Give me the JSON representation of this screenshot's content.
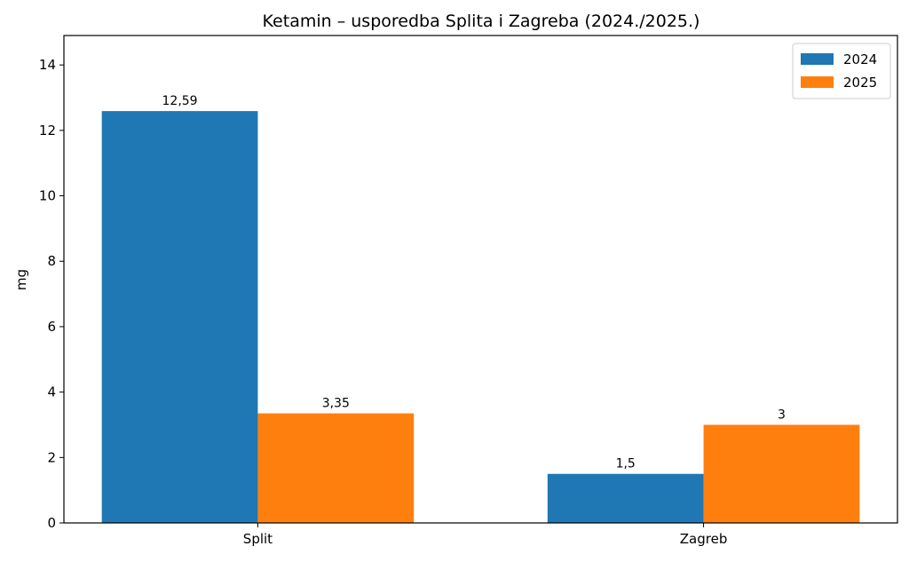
{
  "chart_data": {
    "type": "bar",
    "title": "Ketamin – usporedba Splita i Zagreba (2024./2025.)",
    "xlabel": "",
    "ylabel": "mg",
    "categories": [
      "Split",
      "Zagreb"
    ],
    "series": [
      {
        "name": "2024",
        "values": [
          12.59,
          1.5
        ],
        "labels": [
          "12,59",
          "1,5"
        ],
        "color": "#1f77b4"
      },
      {
        "name": "2025",
        "values": [
          3.35,
          3
        ],
        "labels": [
          "3,35",
          "3"
        ],
        "color": "#ff7f0e"
      }
    ],
    "ylim": [
      0,
      14.9
    ],
    "yticks": [
      0,
      2,
      4,
      6,
      8,
      10,
      12,
      14
    ],
    "grid": false,
    "legend_position": "top-right"
  }
}
